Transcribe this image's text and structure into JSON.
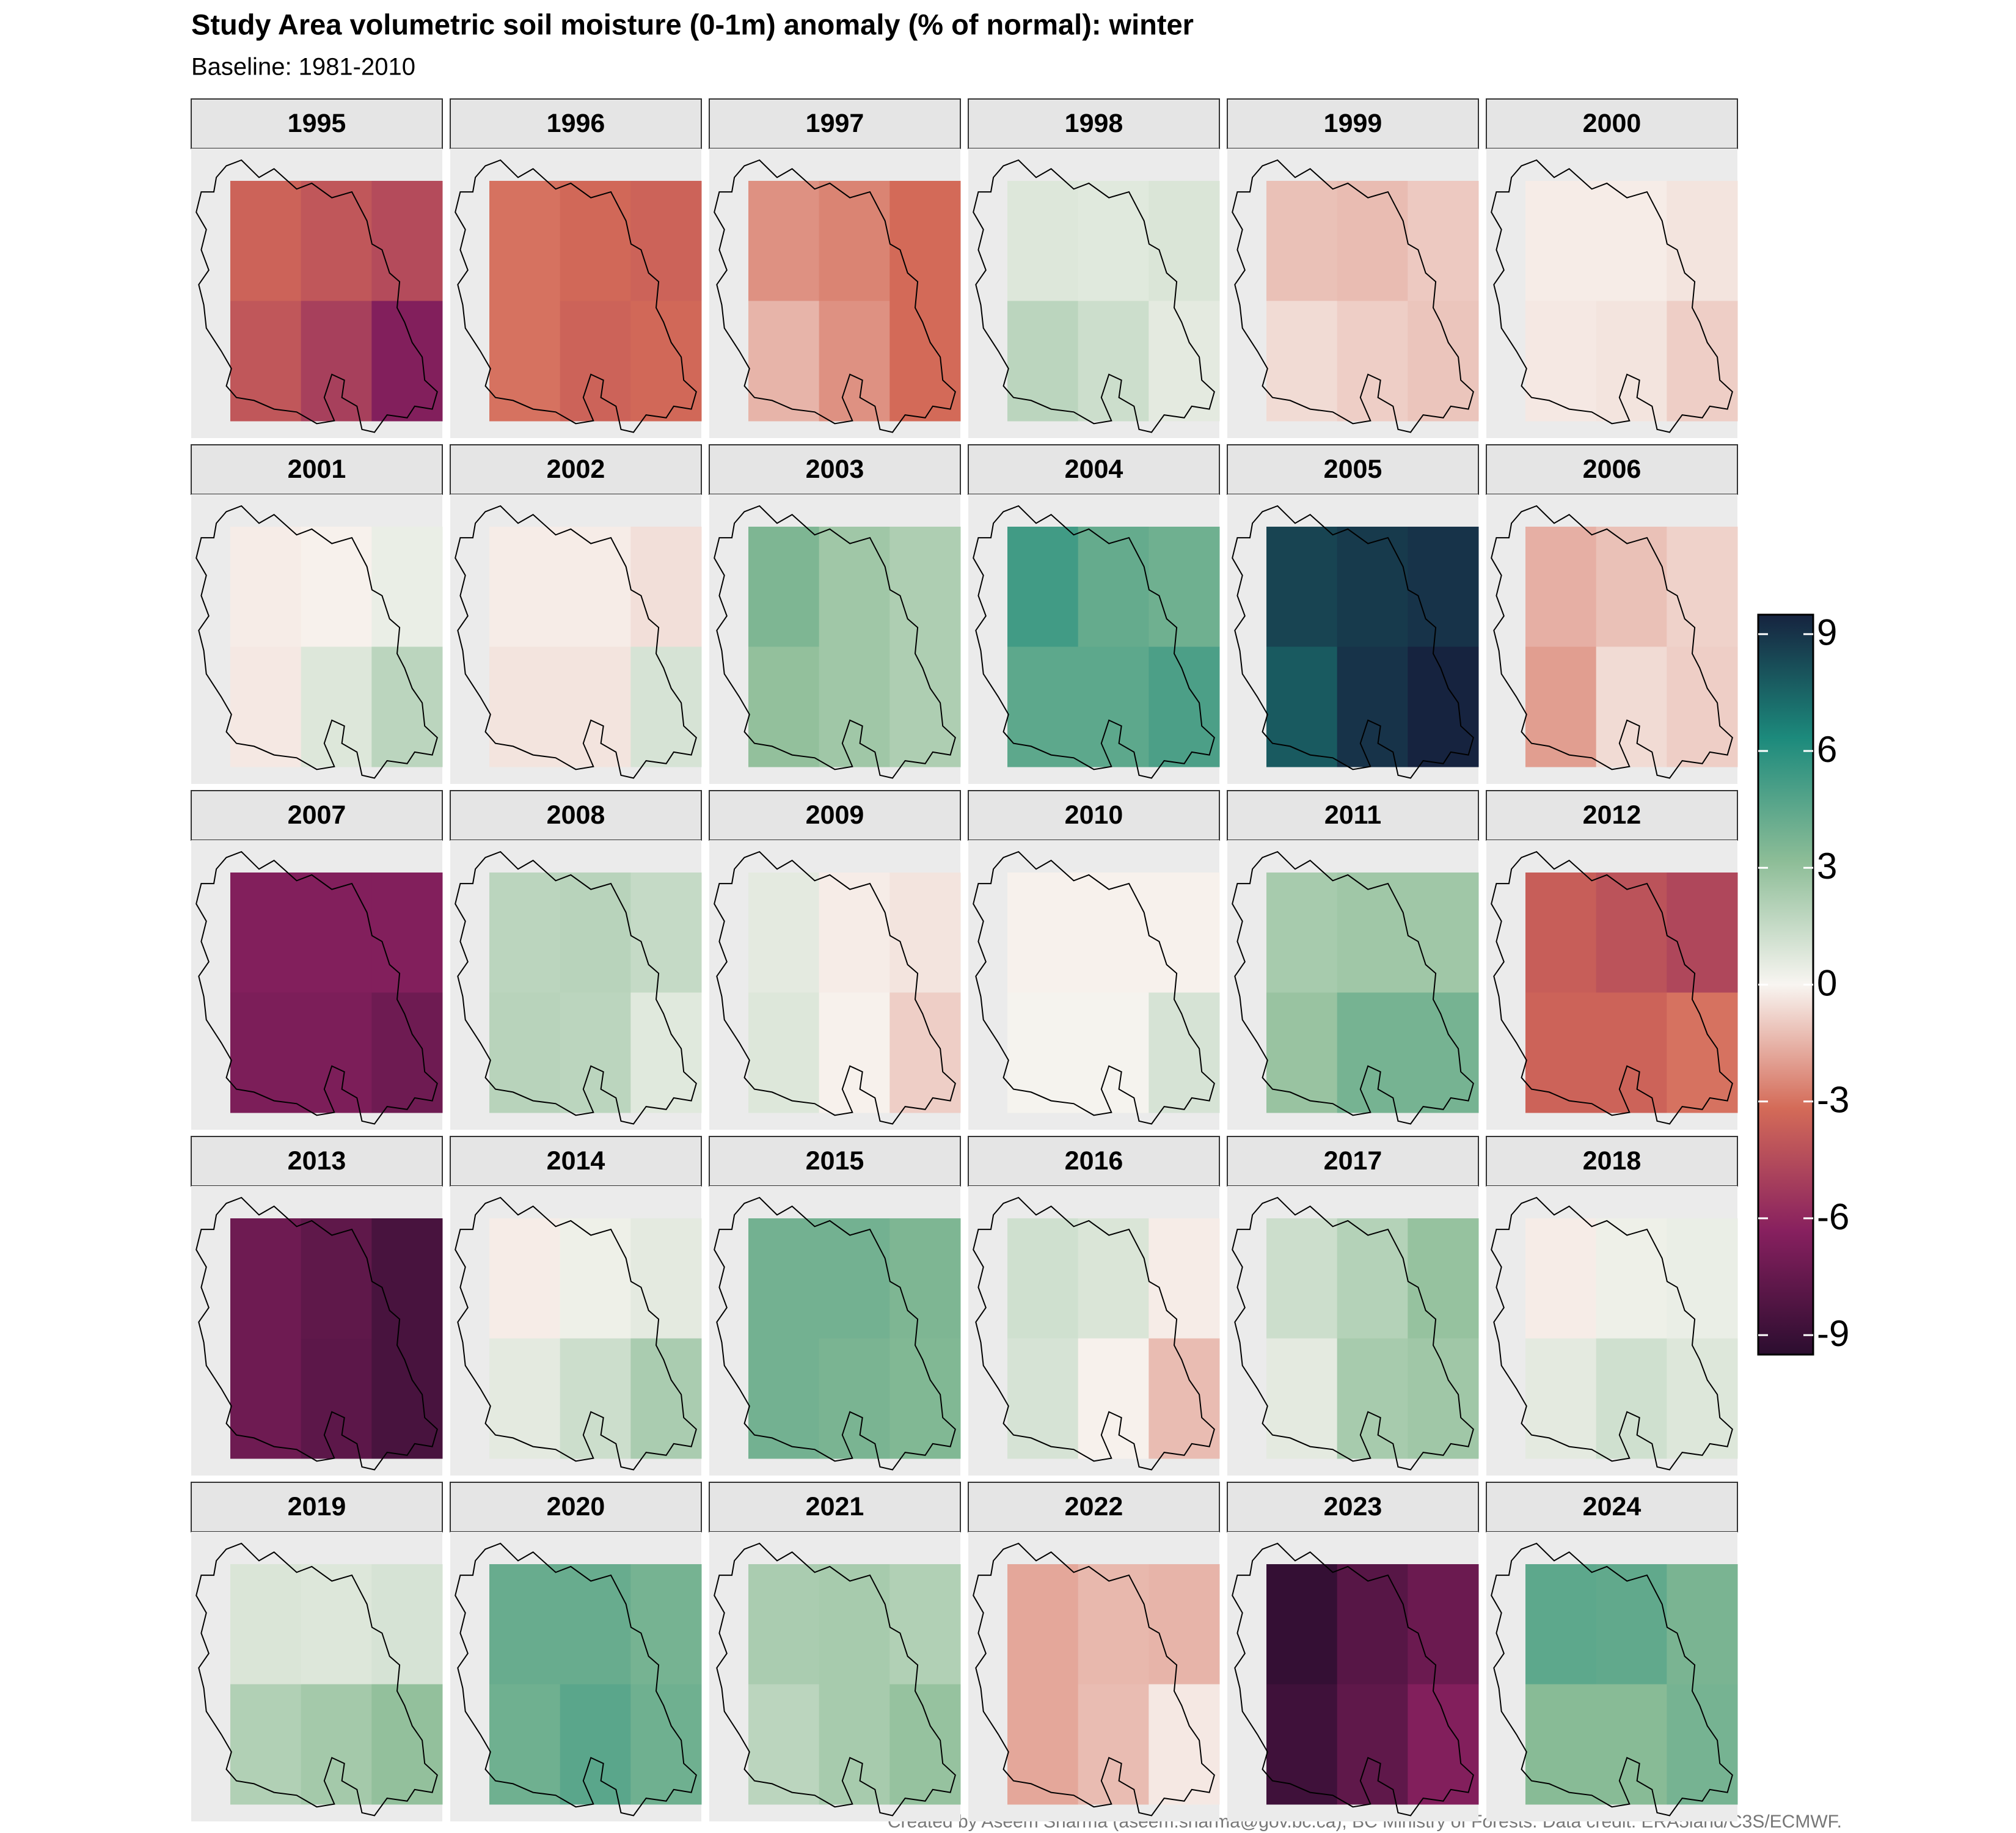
{
  "chart_data": {
    "type": "heatmap",
    "title": "Study Area volumetric soil moisture (0-1m) anomaly (% of normal): winter",
    "subtitle": "Baseline: 1981-2010",
    "caption": "Created by Aseem Sharma (aseem.sharma@gov.bc.ca), BC Ministry of Forests. Data credit: ERA5land/C3S/ECMWF.",
    "zlim": [
      -9.5,
      9.5
    ],
    "zticks": [
      -9,
      -6,
      -3,
      0,
      3,
      6,
      9
    ],
    "colors": [
      "#2b0d2f",
      "#87205f",
      "#d46b58",
      "#f8f5f1",
      "#8dbd97",
      "#1c8a7c",
      "#16233f"
    ],
    "grid_columns": 3,
    "panels": [
      {
        "title": "1995",
        "values": [
          -3.5,
          -4,
          -4.5,
          -4,
          -5,
          -6.5
        ]
      },
      {
        "title": "1996",
        "values": [
          -3,
          -3.3,
          -3.5,
          -3,
          -3.5,
          -3.3
        ]
      },
      {
        "title": "1997",
        "values": [
          -2.3,
          -2.6,
          -3.2,
          -1.5,
          -2.3,
          -3.2
        ]
      },
      {
        "title": "1998",
        "values": [
          0.8,
          0.7,
          0.9,
          1.8,
          1.3,
          0.6
        ]
      },
      {
        "title": "1999",
        "values": [
          -1.2,
          -1.3,
          -1,
          -0.6,
          -0.9,
          -1.1
        ]
      },
      {
        "title": "2000",
        "values": [
          -0.2,
          -0.2,
          -0.4,
          -0.3,
          -0.4,
          -0.9
        ]
      },
      {
        "title": "2001",
        "values": [
          -0.2,
          -0.1,
          0.4,
          -0.3,
          0.8,
          1.8
        ]
      },
      {
        "title": "2002",
        "values": [
          -0.2,
          -0.2,
          -0.5,
          -0.4,
          -0.4,
          1.0
        ]
      },
      {
        "title": "2003",
        "values": [
          3.6,
          2.6,
          2.2,
          3.0,
          2.6,
          2.2
        ]
      },
      {
        "title": "2004",
        "values": [
          5.3,
          4.3,
          4.0,
          4.5,
          4.5,
          5.0
        ]
      },
      {
        "title": "2005",
        "values": [
          8.5,
          8.8,
          9,
          7.8,
          9,
          9.5
        ]
      },
      {
        "title": "2006",
        "values": [
          -1.6,
          -1.2,
          -0.8,
          -2.0,
          -0.6,
          -0.9
        ]
      },
      {
        "title": "2007",
        "values": [
          -6.5,
          -6.5,
          -6.5,
          -6.7,
          -6.7,
          -7.2
        ]
      },
      {
        "title": "2008",
        "values": [
          1.8,
          1.9,
          1.5,
          1.9,
          1.8,
          0.7
        ]
      },
      {
        "title": "2009",
        "values": [
          0.6,
          -0.2,
          -0.4,
          0.8,
          -0.1,
          -0.9
        ]
      },
      {
        "title": "2010",
        "values": [
          -0.1,
          -0.1,
          -0.1,
          0.1,
          0.1,
          1.0
        ]
      },
      {
        "title": "2011",
        "values": [
          2.4,
          2.6,
          2.6,
          2.8,
          3.8,
          3.8
        ]
      },
      {
        "title": "2012",
        "values": [
          -3.7,
          -4.2,
          -4.7,
          -3.5,
          -3.5,
          -3.0
        ]
      },
      {
        "title": "2013",
        "values": [
          -7.2,
          -7.7,
          -8.5,
          -7.2,
          -7.8,
          -8.5
        ]
      },
      {
        "title": "2014",
        "values": [
          -0.2,
          0.3,
          0.6,
          0.6,
          1.3,
          2.3
        ]
      },
      {
        "title": "2015",
        "values": [
          3.9,
          3.9,
          3.6,
          3.9,
          3.7,
          3.5
        ]
      },
      {
        "title": "2016",
        "values": [
          1.2,
          0.9,
          -0.2,
          1.0,
          -0.1,
          -1.3
        ]
      },
      {
        "title": "2017",
        "values": [
          1.3,
          2.0,
          2.9,
          0.6,
          2.4,
          2.6
        ]
      },
      {
        "title": "2018",
        "values": [
          -0.2,
          0.3,
          0.4,
          0.6,
          1.2,
          0.8
        ]
      },
      {
        "title": "2019",
        "values": [
          0.9,
          0.8,
          1.0,
          2.1,
          2.5,
          3.0
        ]
      },
      {
        "title": "2020",
        "values": [
          4.2,
          4.2,
          3.8,
          4.0,
          4.6,
          4.0
        ]
      },
      {
        "title": "2021",
        "values": [
          2.3,
          2.4,
          2.1,
          1.8,
          2.4,
          2.9
        ]
      },
      {
        "title": "2022",
        "values": [
          -1.8,
          -1.4,
          -1.5,
          -1.8,
          -1.3,
          -0.3
        ]
      },
      {
        "title": "2023",
        "values": [
          -9.2,
          -8,
          -7.3,
          -8.8,
          -7.7,
          -6.5
        ]
      },
      {
        "title": "2024",
        "values": [
          4.5,
          4.4,
          3.7,
          3.3,
          3.3,
          3.8
        ]
      }
    ]
  }
}
